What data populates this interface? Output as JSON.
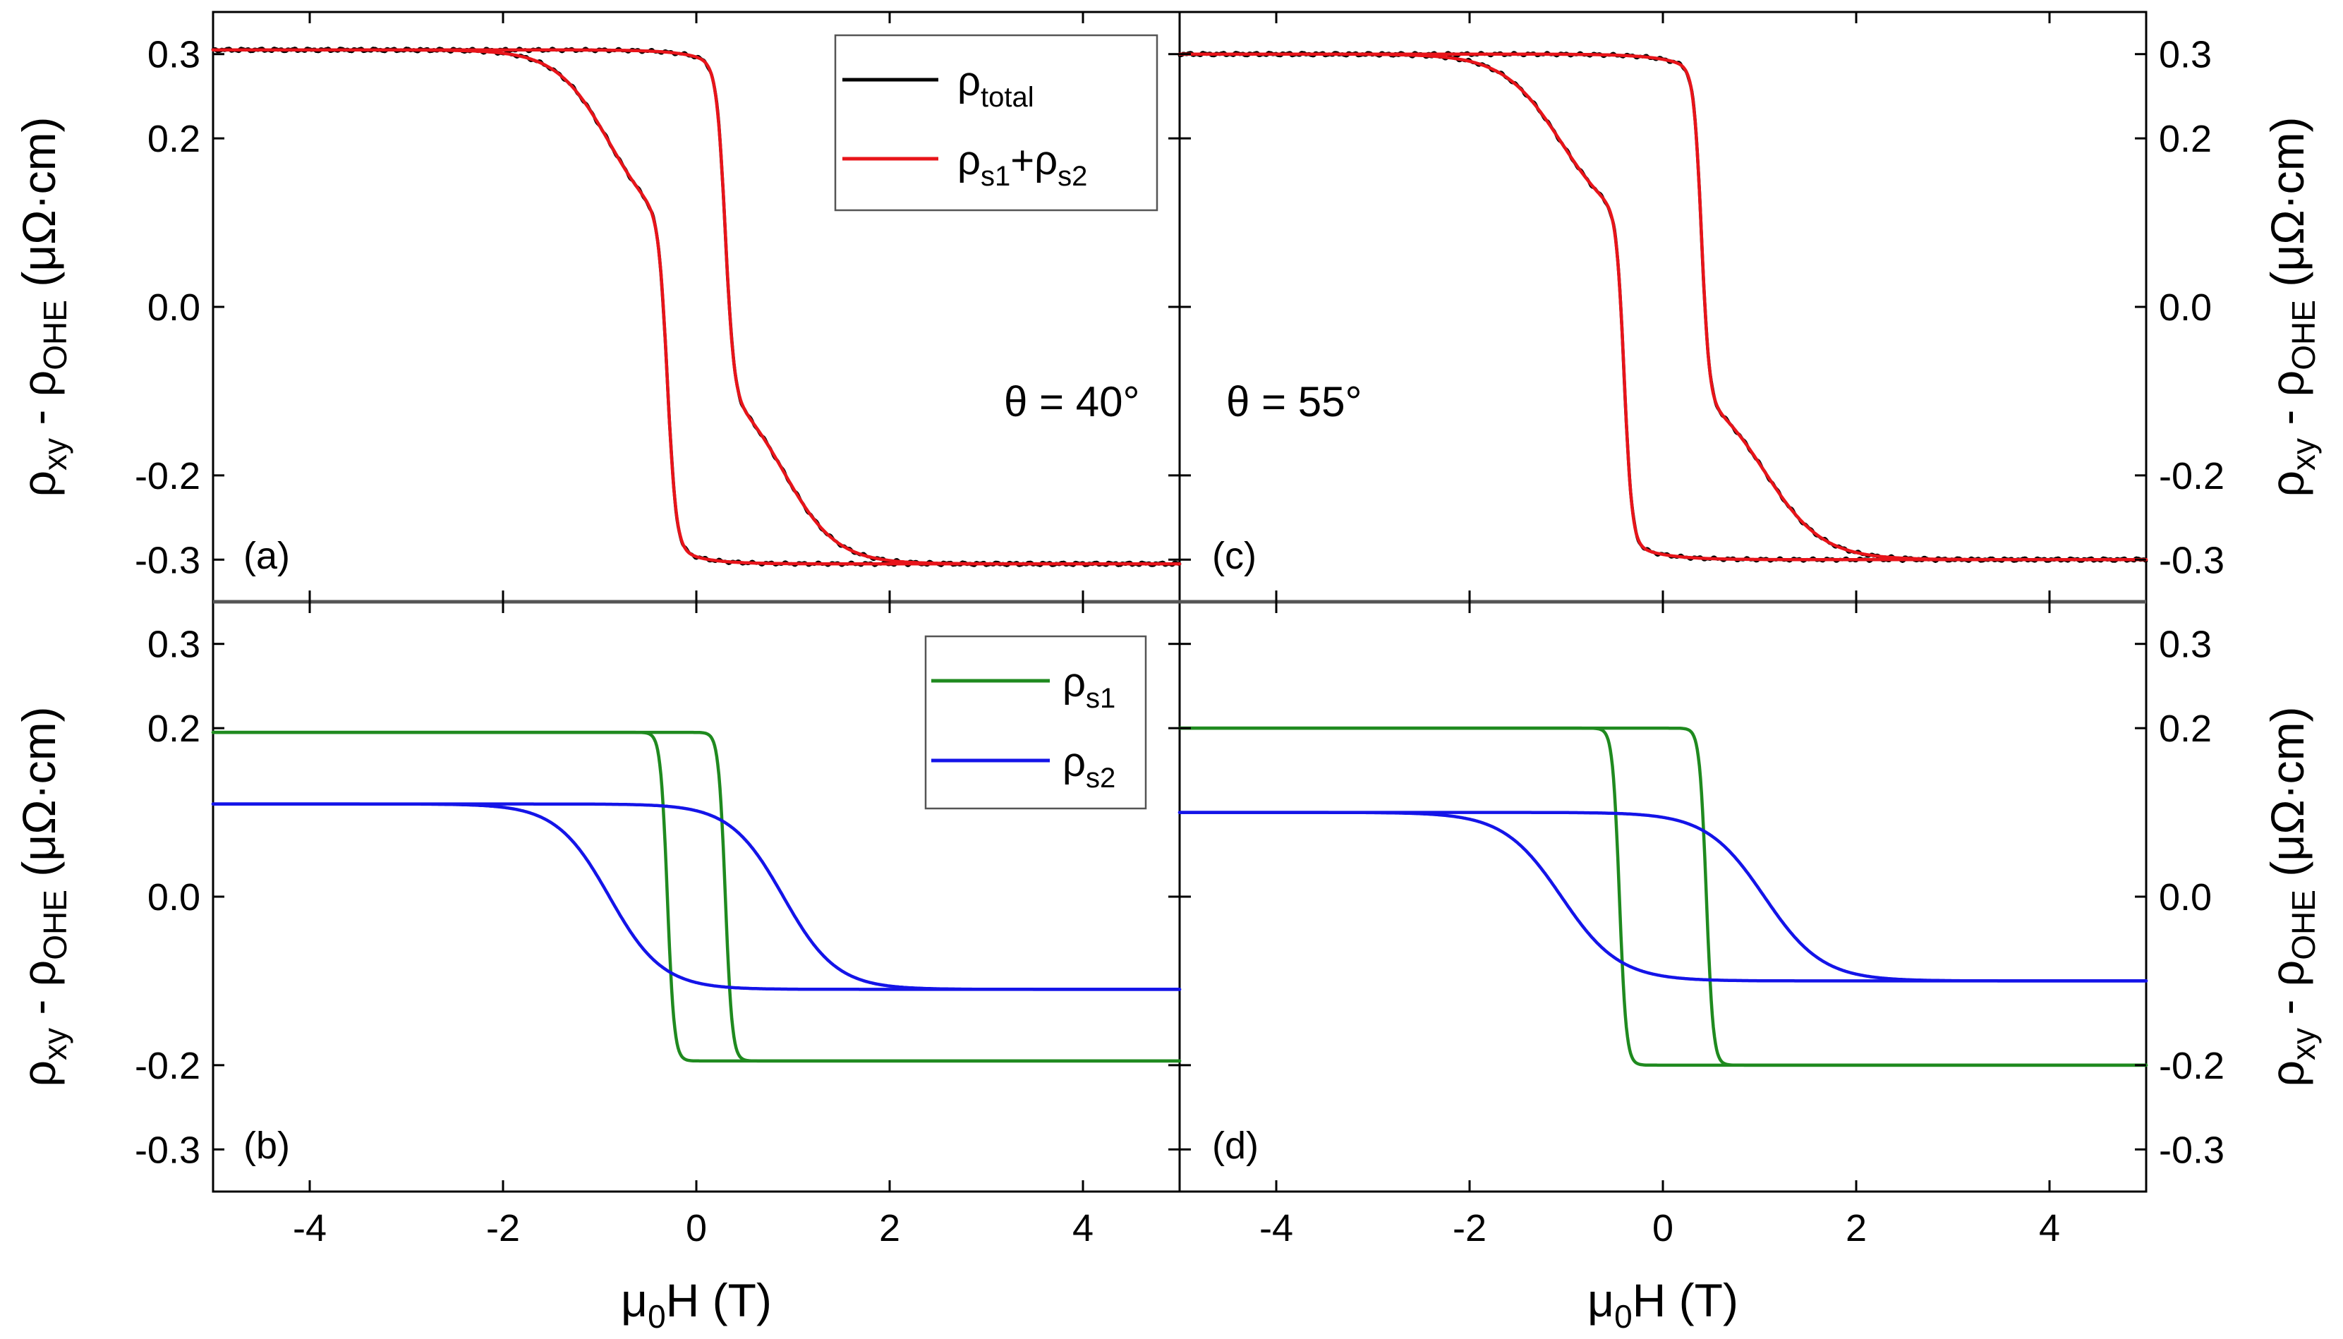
{
  "colors": {
    "total": "#000000",
    "sum": "#e8141a",
    "s1": "#1f8a1f",
    "s2": "#1414e8"
  },
  "legend_top": {
    "total_base": "ρ",
    "total_sub": "total",
    "sum_base1": "ρ",
    "sum_sub1": "s1",
    "sum_plus": "+",
    "sum_base2": "ρ",
    "sum_sub2": "s2"
  },
  "legend_bottom": {
    "s1_base": "ρ",
    "s1_sub": "s1",
    "s2_base": "ρ",
    "s2_sub": "s2"
  },
  "ylabel": {
    "base1": "ρ",
    "sub1": "xy",
    "mid": " - ",
    "base2": "ρ",
    "sub2": "OHE",
    "unit": " (μΩ·cm)"
  },
  "xlabel": {
    "base": "μ",
    "sub": "0",
    "rest": "H (T)"
  },
  "chart_data": [
    {
      "panel_label": "(a)",
      "type": "line",
      "annotation": "θ = 40°",
      "xlim": [
        -5,
        5
      ],
      "ylim": [
        -0.35,
        0.35
      ],
      "xticks": [
        "-4",
        "-2",
        "0",
        "2",
        "4"
      ],
      "yticks": [
        "0.3",
        "0.2",
        "0.0",
        "-0.2",
        "-0.3"
      ],
      "ytick_values": [
        0.3,
        0.2,
        0.0,
        -0.2,
        -0.3
      ],
      "xtick_values": [
        -4,
        -2,
        0,
        2,
        4
      ],
      "series": [
        {
          "name": "ρ_total",
          "color_key": "total",
          "noise": 0.002,
          "a1": 0.195,
          "c1": 0.3,
          "w1": 0.09,
          "a2": 0.11,
          "c2": 0.9,
          "w2": 0.55
        },
        {
          "name": "ρ_s1+ρ_s2",
          "color_key": "sum",
          "noise": 0,
          "a1": 0.195,
          "c1": 0.3,
          "w1": 0.09,
          "a2": 0.11,
          "c2": 0.9,
          "w2": 0.55
        }
      ]
    },
    {
      "panel_label": "(b)",
      "type": "line",
      "xlim": [
        -5,
        5
      ],
      "ylim": [
        -0.35,
        0.35
      ],
      "xticks": [
        "-4",
        "-2",
        "0",
        "2",
        "4"
      ],
      "yticks": [
        "0.3",
        "0.2",
        "0.0",
        "-0.2",
        "-0.3"
      ],
      "ytick_values": [
        0.3,
        0.2,
        0.0,
        -0.2,
        -0.3
      ],
      "xtick_values": [
        -4,
        -2,
        0,
        2,
        4
      ],
      "series": [
        {
          "name": "ρ_s1",
          "color_key": "s1",
          "noise": 0,
          "a1": 0.195,
          "c1": 0.3,
          "w1": 0.07,
          "a2": 0,
          "c2": 0,
          "w2": 1
        },
        {
          "name": "ρ_s2",
          "color_key": "s2",
          "noise": 0,
          "a1": 0,
          "c1": 0,
          "w1": 1,
          "a2": 0.11,
          "c2": 0.9,
          "w2": 0.55
        }
      ]
    },
    {
      "panel_label": "(c)",
      "type": "line",
      "annotation": "θ = 55°",
      "xlim": [
        -5,
        5
      ],
      "ylim": [
        -0.35,
        0.35
      ],
      "xticks": [
        "-4",
        "-2",
        "0",
        "2",
        "4"
      ],
      "yticks": [
        "0.3",
        "0.2",
        "0.0",
        "-0.2",
        "-0.3"
      ],
      "ytick_values": [
        0.3,
        0.2,
        0.0,
        -0.2,
        -0.3
      ],
      "xtick_values": [
        -4,
        -2,
        0,
        2,
        4
      ],
      "series": [
        {
          "name": "ρ_total",
          "color_key": "total",
          "noise": 0.002,
          "a1": 0.195,
          "c1": 0.4,
          "w1": 0.08,
          "a2": 0.105,
          "c2": 1.05,
          "w2": 0.6
        },
        {
          "name": "ρ_s1+ρ_s2",
          "color_key": "sum",
          "noise": 0,
          "a1": 0.195,
          "c1": 0.4,
          "w1": 0.08,
          "a2": 0.105,
          "c2": 1.05,
          "w2": 0.6
        }
      ]
    },
    {
      "panel_label": "(d)",
      "type": "line",
      "xlim": [
        -5,
        5
      ],
      "ylim": [
        -0.35,
        0.35
      ],
      "xticks": [
        "-4",
        "-2",
        "0",
        "2",
        "4"
      ],
      "yticks": [
        "0.3",
        "0.2",
        "0.0",
        "-0.2",
        "-0.3"
      ],
      "ytick_values": [
        0.3,
        0.2,
        0.0,
        -0.2,
        -0.3
      ],
      "xtick_values": [
        -4,
        -2,
        0,
        2,
        4
      ],
      "series": [
        {
          "name": "ρ_s1",
          "color_key": "s1",
          "noise": 0,
          "a1": 0.2,
          "c1": 0.45,
          "w1": 0.07,
          "a2": 0,
          "c2": 0,
          "w2": 1
        },
        {
          "name": "ρ_s2",
          "color_key": "s2",
          "noise": 0,
          "a1": 0,
          "c1": 0,
          "w1": 1,
          "a2": 0.1,
          "c2": 1.05,
          "w2": 0.6
        }
      ]
    }
  ]
}
